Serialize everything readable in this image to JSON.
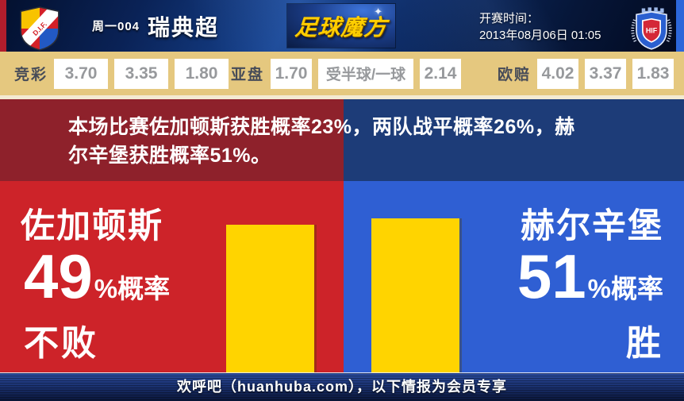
{
  "header": {
    "match_code": "周一004",
    "league": "瑞典超",
    "site_logo": "足球魔方",
    "kickoff_label": "开赛时间：",
    "kickoff_datetime": "2013年08月06日 01:05",
    "home_badge_text": "D.I.F.",
    "away_badge_text": "HIF"
  },
  "odds_bar": {
    "groups": [
      {
        "label": "竞彩",
        "values": [
          "3.70",
          "3.35",
          "1.80"
        ]
      },
      {
        "label": "亚盘",
        "values": [
          "1.70",
          "受半球/一球",
          "2.14"
        ]
      },
      {
        "label": "欧赔",
        "values": [
          "4.02",
          "3.37",
          "1.83"
        ]
      }
    ]
  },
  "banner": {
    "text": "本场比赛佐加顿斯获胜概率23%，两队战平概率26%，赫尔辛堡获胜概率51%。"
  },
  "teams": {
    "home": {
      "name": "佐加顿斯",
      "percent": "49",
      "suffix": "%概率",
      "outcome": "不败",
      "probability": 49
    },
    "away": {
      "name": "赫尔辛堡",
      "percent": "51",
      "suffix": "%概率",
      "outcome": "胜",
      "probability": 51
    }
  },
  "footer": {
    "text": "欢呼吧（huanhuba.com），以下情报为会员专享"
  },
  "colors": {
    "home_red": "#cd2329",
    "away_blue": "#2f5fd3",
    "banner_red": "#8e212b",
    "banner_blue": "#1d3c78",
    "bar_yellow": "#ffd400",
    "odds_tan": "#e5c87f",
    "header_navy": "#0a2256"
  }
}
